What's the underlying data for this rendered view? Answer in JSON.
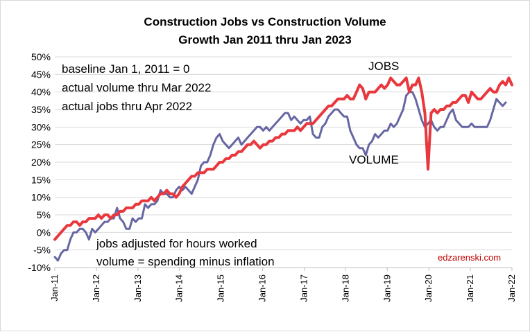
{
  "chart_data": {
    "type": "line",
    "title": [
      "Construction Jobs vs Construction Volume",
      "Growth Jan 2011 thru Jan 2023"
    ],
    "xlabel": "",
    "ylabel": "",
    "x_tick_labels": [
      "Jan-11",
      "Jan-12",
      "Jan-13",
      "Jan-14",
      "Jan-15",
      "Jan-16",
      "Jan-17",
      "Jan-18",
      "Jan-19",
      "Jan-20",
      "Jan-21",
      "Jan-22"
    ],
    "y_tick_labels": [
      "-10%",
      "-5%",
      "0%",
      "5%",
      "10%",
      "15%",
      "20%",
      "25%",
      "30%",
      "35%",
      "40%",
      "45%",
      "50%"
    ],
    "ylim": [
      -10,
      50
    ],
    "y_unit": "%",
    "x_start": "Jan-11",
    "grid": "horizontal",
    "annotations": [
      "baseline Jan 1, 2011 = 0",
      "actual volume thru Mar 2022",
      "actual jobs thru Apr 2022",
      "jobs adjusted for hours worked",
      "volume = spending minus inflation"
    ],
    "credit": "edzarenski.com",
    "series": [
      {
        "name": "JOBS",
        "color": "#e8383d",
        "values": [
          -2,
          -1,
          0,
          1,
          2,
          2,
          3,
          3,
          2,
          3,
          3,
          4,
          4,
          4,
          5,
          4,
          5,
          5,
          4,
          5,
          5,
          6,
          6,
          7,
          7,
          7,
          8,
          8,
          9,
          9,
          9,
          10,
          9,
          10,
          11,
          11,
          12,
          11,
          11,
          10,
          11,
          13,
          14,
          15,
          16,
          16,
          17,
          17,
          17,
          18,
          18,
          18,
          19,
          20,
          20,
          21,
          21,
          22,
          22,
          23,
          23,
          24,
          25,
          25,
          26,
          25,
          24,
          25,
          25,
          26,
          26,
          27,
          27,
          28,
          28,
          29,
          29,
          29,
          30,
          29,
          30,
          31,
          31,
          31,
          32,
          33,
          34,
          35,
          36,
          36,
          37,
          38,
          38,
          38,
          39,
          38,
          38,
          40,
          42,
          41,
          38,
          40,
          40,
          40,
          41,
          42,
          41,
          42,
          44,
          43,
          42,
          42,
          43,
          44,
          40,
          42,
          42,
          44,
          40,
          34,
          18,
          34,
          35,
          34,
          35,
          35,
          36,
          36,
          37,
          37,
          38,
          39,
          39,
          37,
          40,
          39,
          38,
          38,
          39,
          40,
          41,
          40,
          40,
          42,
          43,
          42,
          44,
          42
        ]
      },
      {
        "name": "VOLUME",
        "color": "#6666a3",
        "values": [
          -7,
          -8,
          -6,
          -5,
          -5,
          -2,
          0,
          0,
          1,
          1,
          0,
          -2,
          1,
          0,
          1,
          2,
          3,
          3,
          4,
          4,
          7,
          4,
          3,
          1,
          1,
          4,
          3,
          4,
          4,
          8,
          7,
          8,
          8,
          9,
          12,
          11,
          11,
          10,
          10,
          12,
          13,
          12,
          13,
          12,
          11,
          13,
          15,
          19,
          20,
          20,
          22,
          25,
          27,
          28,
          26,
          25,
          24,
          25,
          26,
          27,
          25,
          26,
          27,
          28,
          29,
          30,
          30,
          29,
          30,
          29,
          30,
          31,
          32,
          33,
          34,
          34,
          32,
          33,
          32,
          31,
          32,
          32,
          33,
          28,
          27,
          27,
          30,
          31,
          33,
          34,
          35,
          35,
          34,
          33,
          33,
          29,
          27,
          25,
          24,
          24,
          22,
          25,
          26,
          28,
          27,
          28,
          29,
          29,
          31,
          30,
          31,
          33,
          35,
          39,
          40,
          40,
          38,
          35,
          32,
          30,
          31,
          32,
          30,
          29,
          30,
          30,
          32,
          34,
          35,
          32,
          31,
          30,
          30,
          30,
          31,
          30,
          30,
          30,
          30,
          30,
          32,
          35,
          38,
          37,
          36,
          37
        ]
      }
    ]
  }
}
